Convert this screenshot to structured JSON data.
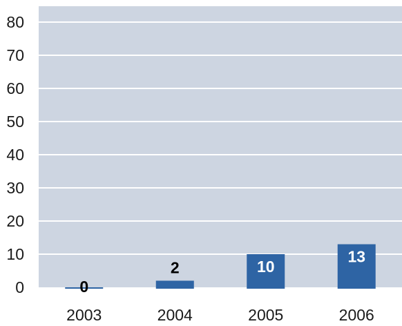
{
  "chart_data": {
    "type": "bar",
    "categories": [
      "2003",
      "2004",
      "2005",
      "2006"
    ],
    "values": [
      0,
      2,
      10,
      13
    ],
    "data_labels": [
      "0",
      "2",
      "10",
      "13"
    ],
    "title": "",
    "xlabel": "",
    "ylabel": "",
    "ylim": [
      0,
      80
    ],
    "yticks": [
      0,
      10,
      20,
      30,
      40,
      50,
      60,
      70,
      80
    ],
    "ytick_labels": [
      "0",
      "10",
      "20",
      "30",
      "40",
      "50",
      "60",
      "70",
      "80"
    ],
    "grid": true,
    "legend": "none",
    "colors": {
      "plot_background": "#cdd5e1",
      "gridline": "#ffffff",
      "bar": "#2e64a4",
      "label_on_bar": "#ffffff",
      "label_outside": "#000000"
    }
  }
}
